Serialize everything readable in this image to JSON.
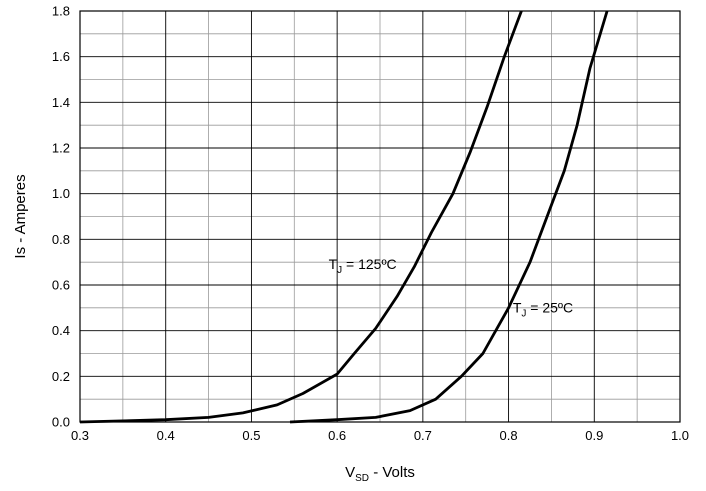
{
  "chart_data": {
    "type": "line",
    "title": "",
    "xlabel": {
      "main": "V",
      "sub": "SD",
      "rest": " - Volts"
    },
    "ylabel": "Is - Amperes",
    "xlim": [
      0.3,
      1.0
    ],
    "ylim": [
      0.0,
      1.8
    ],
    "x_ticks": [
      "0.3",
      "0.4",
      "0.5",
      "0.6",
      "0.7",
      "0.8",
      "0.9",
      "1.0"
    ],
    "y_ticks": [
      "0.0",
      "0.2",
      "0.4",
      "0.6",
      "0.8",
      "1.0",
      "1.2",
      "1.4",
      "1.6",
      "1.8"
    ],
    "grid": true,
    "minor_grid": true,
    "series": [
      {
        "name": "",
        "color": "#000000",
        "x": [
          0.3,
          0.35,
          0.4,
          0.45,
          0.49,
          0.53,
          0.56,
          0.6,
          0.62,
          0.645,
          0.67,
          0.69,
          0.71,
          0.735,
          0.755,
          0.775,
          0.795,
          0.815
        ],
        "y": [
          0.0,
          0.005,
          0.01,
          0.02,
          0.04,
          0.075,
          0.125,
          0.21,
          0.3,
          0.41,
          0.55,
          0.68,
          0.83,
          1.0,
          1.18,
          1.38,
          1.6,
          1.8
        ]
      },
      {
        "name": "",
        "color": "#000000",
        "x": [
          0.545,
          0.6,
          0.645,
          0.685,
          0.715,
          0.745,
          0.77,
          0.8,
          0.825,
          0.845,
          0.865,
          0.88,
          0.895,
          0.915
        ],
        "y": [
          0.0,
          0.01,
          0.02,
          0.05,
          0.1,
          0.2,
          0.3,
          0.5,
          0.7,
          0.9,
          1.1,
          1.3,
          1.55,
          1.8
        ]
      }
    ],
    "annotations": [
      {
        "main": "T",
        "sub": "J",
        "rest": " = 125ºC",
        "x": 0.59,
        "y": 0.67
      },
      {
        "main": "T",
        "sub": "J",
        "rest": " = 25ºC",
        "x": 0.805,
        "y": 0.48
      }
    ]
  }
}
